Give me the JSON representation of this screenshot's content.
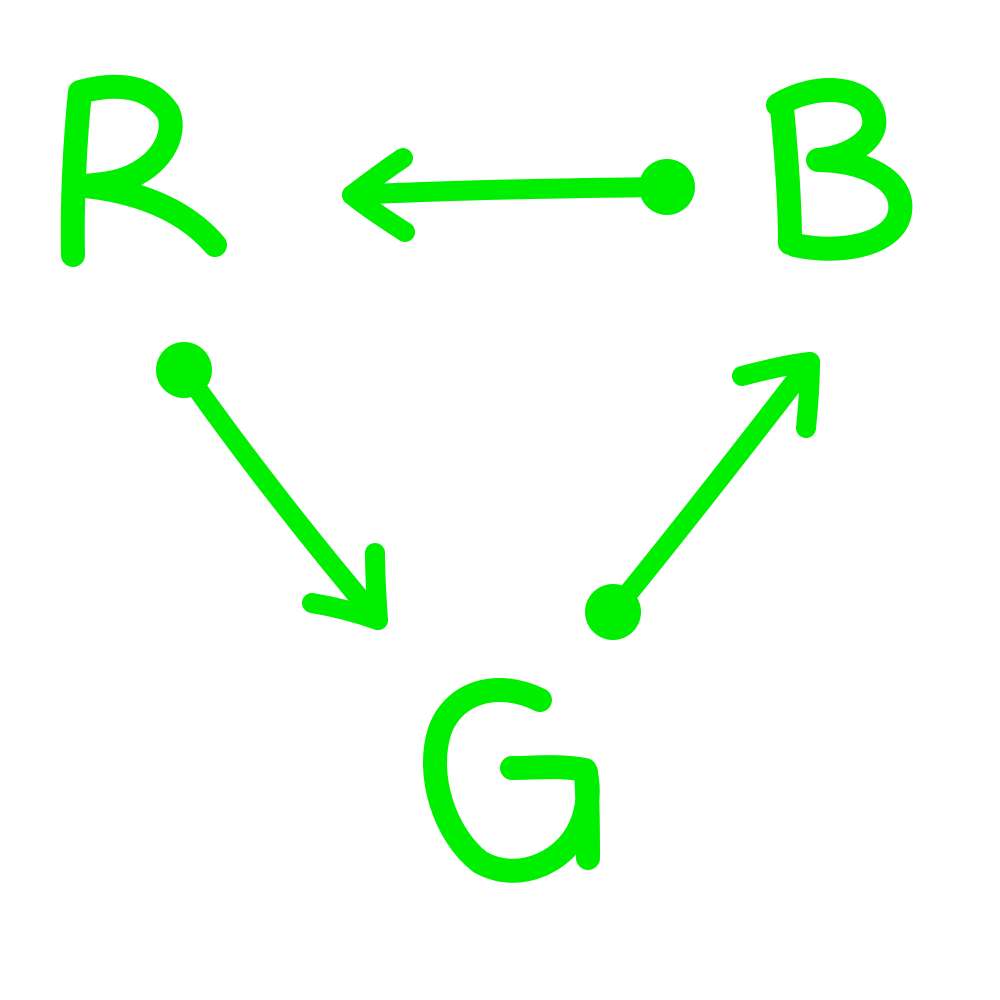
{
  "diagram": {
    "stroke_color": "#00ee00",
    "nodes": [
      {
        "id": "R",
        "label": "R"
      },
      {
        "id": "B",
        "label": "B"
      },
      {
        "id": "G",
        "label": "G"
      }
    ],
    "edges": [
      {
        "from": "B",
        "to": "R",
        "start_marker": "dot",
        "end_marker": "arrowhead"
      },
      {
        "from": "R",
        "to": "G",
        "start_marker": "dot",
        "end_marker": "arrowhead"
      },
      {
        "from": "G",
        "to": "B",
        "start_marker": "dot",
        "end_marker": "arrowhead"
      }
    ]
  }
}
